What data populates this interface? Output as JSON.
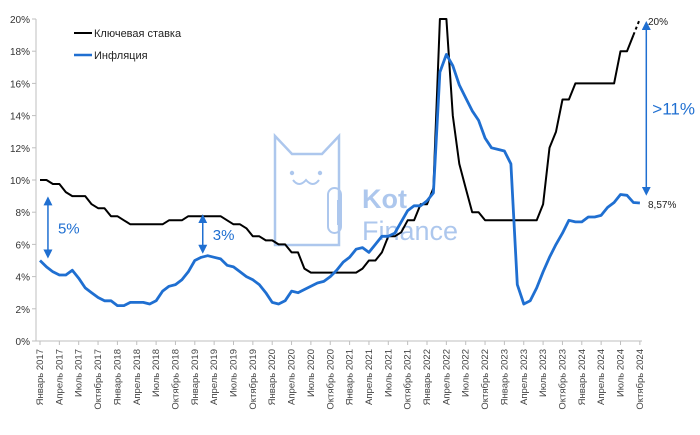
{
  "chart_data": {
    "type": "line",
    "title": "",
    "xlabel": "",
    "ylabel": "",
    "ylim": [
      0,
      20
    ],
    "y_ticks": [
      "0%",
      "2%",
      "4%",
      "6%",
      "8%",
      "10%",
      "12%",
      "14%",
      "16%",
      "18%",
      "20%"
    ],
    "y_tick_values": [
      0,
      2,
      4,
      6,
      8,
      10,
      12,
      14,
      16,
      18,
      20
    ],
    "x_tick_labels": [
      "Январь 2017",
      "Апрель 2017",
      "Июль 2017",
      "Октябрь 2017",
      "Январь 2018",
      "Апрель 2018",
      "Июль 2018",
      "Октябрь 2018",
      "Январь 2019",
      "Апрель 2019",
      "Июль 2019",
      "Октябрь 2019",
      "Январь 2020",
      "Апрель 2020",
      "Июль 2020",
      "Октябрь 2020",
      "Январь 2021",
      "Апрель 2021",
      "Июль 2021",
      "Октябрь 2021",
      "Январь 2022",
      "Апрель 2022",
      "Июль 2022",
      "Октябрь 2022",
      "Январь 2023",
      "Апрель 2023",
      "Июль 2023",
      "Октябрь 2023",
      "Январь 2024",
      "Апрель 2024",
      "Июль 2024",
      "Октябрь 2024"
    ],
    "x_unit": "month index from January 2017 (monthly)",
    "grid": false,
    "legend_position": "top-left",
    "series": [
      {
        "name": "Ключевая ставка",
        "color": "#000000",
        "last_segment_dashed": true,
        "values": [
          10,
          10,
          9.75,
          9.75,
          9.25,
          9,
          9,
          9,
          8.5,
          8.25,
          8.25,
          7.75,
          7.75,
          7.5,
          7.25,
          7.25,
          7.25,
          7.25,
          7.25,
          7.25,
          7.5,
          7.5,
          7.5,
          7.75,
          7.75,
          7.75,
          7.75,
          7.75,
          7.75,
          7.5,
          7.25,
          7.25,
          7,
          6.5,
          6.5,
          6.25,
          6.25,
          6,
          6,
          5.5,
          5.5,
          4.5,
          4.25,
          4.25,
          4.25,
          4.25,
          4.25,
          4.25,
          4.25,
          4.25,
          4.5,
          5,
          5,
          5.5,
          6.5,
          6.5,
          6.75,
          7.5,
          7.5,
          8.5,
          8.5,
          9.5,
          20,
          20,
          14,
          11,
          9.5,
          8,
          8,
          7.5,
          7.5,
          7.5,
          7.5,
          7.5,
          7.5,
          7.5,
          7.5,
          7.5,
          8.5,
          12,
          13,
          15,
          15,
          16,
          16,
          16,
          16,
          16,
          16,
          16,
          18,
          18,
          19,
          20
        ]
      },
      {
        "name": "Инфляция",
        "color": "#1f6fd1",
        "values": [
          5.0,
          4.6,
          4.3,
          4.1,
          4.1,
          4.4,
          3.9,
          3.3,
          3.0,
          2.7,
          2.5,
          2.5,
          2.2,
          2.2,
          2.4,
          2.4,
          2.4,
          2.3,
          2.5,
          3.1,
          3.4,
          3.5,
          3.8,
          4.3,
          5.0,
          5.2,
          5.3,
          5.2,
          5.1,
          4.7,
          4.6,
          4.3,
          4.0,
          3.8,
          3.5,
          3.0,
          2.4,
          2.3,
          2.5,
          3.1,
          3.0,
          3.2,
          3.4,
          3.6,
          3.7,
          4.0,
          4.4,
          4.9,
          5.2,
          5.7,
          5.8,
          5.5,
          6.0,
          6.5,
          6.5,
          6.7,
          7.4,
          8.1,
          8.4,
          8.4,
          8.7,
          9.2,
          16.7,
          17.8,
          17.1,
          15.9,
          15.1,
          14.3,
          13.7,
          12.6,
          12.0,
          11.9,
          11.8,
          11.0,
          3.5,
          2.3,
          2.5,
          3.3,
          4.3,
          5.2,
          6.0,
          6.7,
          7.5,
          7.4,
          7.4,
          7.7,
          7.7,
          7.8,
          8.3,
          8.6,
          9.1,
          9.05,
          8.6,
          8.57
        ]
      }
    ],
    "annotations": [
      {
        "label": "5%",
        "from": 8.7,
        "to": 5.4,
        "month": 1
      },
      {
        "label": "3%",
        "from": 7.6,
        "to": 5.7,
        "month": 25
      },
      {
        "label": ">11%",
        "from": 19.6,
        "to": 9.3,
        "month": 94
      }
    ],
    "end_labels": {
      "key_rate": "20%",
      "inflation": "8,57%"
    }
  },
  "watermark": {
    "text_line1": "Kot",
    "text_line2": "Finance"
  },
  "colors": {
    "accent": "#1f6fd1",
    "watermark": "#8fb2e8",
    "axis": "#bfbfbf"
  }
}
